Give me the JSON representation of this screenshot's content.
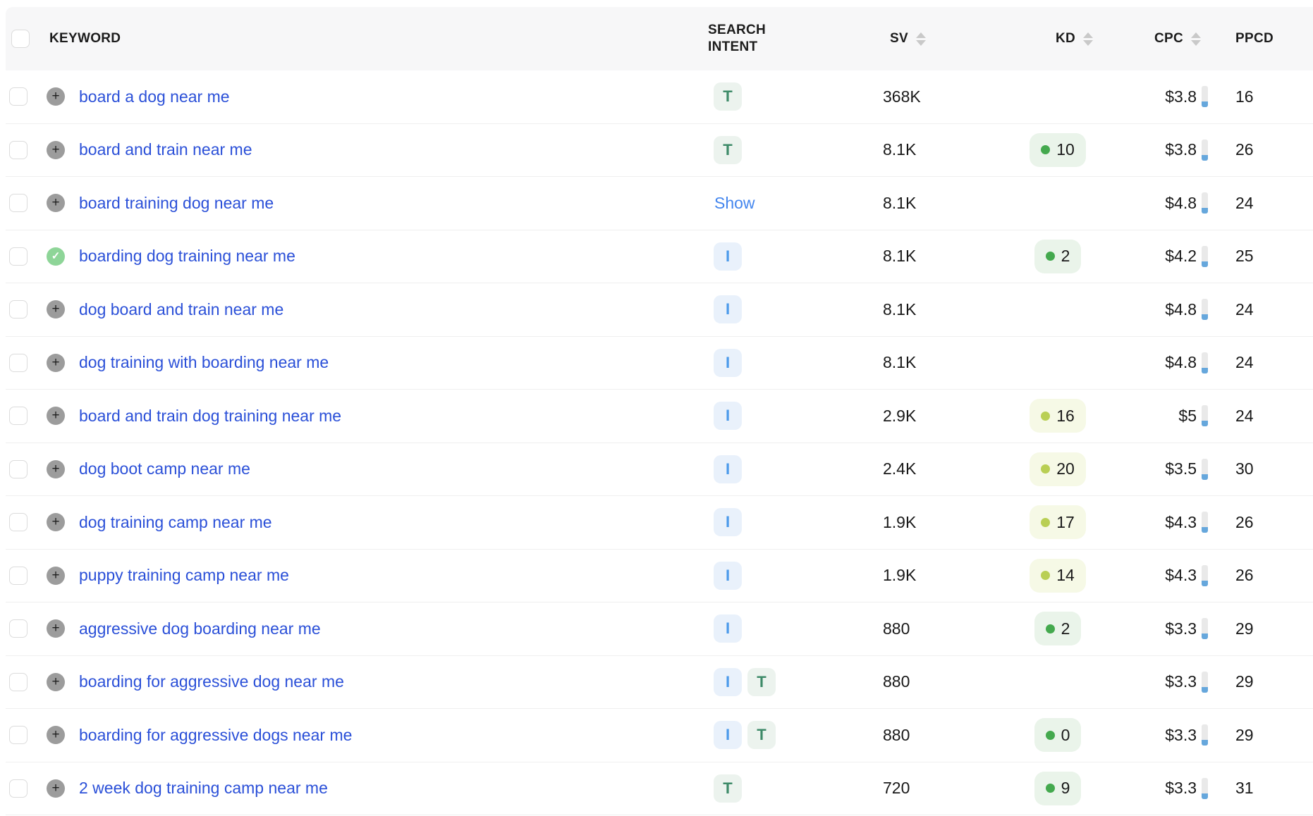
{
  "table": {
    "columns": {
      "keyword": "KEYWORD",
      "intent": "SEARCH INTENT",
      "sv": "SV",
      "kd": "KD",
      "cpc": "CPC",
      "ppcd": "PPCD"
    },
    "sortable_columns": [
      "SV",
      "KD",
      "CPC"
    ],
    "rows": [
      {
        "keyword": "board a dog near me",
        "added": false,
        "intents": [
          "T"
        ],
        "sv": "368K",
        "kd": null,
        "kd_level": null,
        "cpc": "$3.8",
        "ppcd": "16"
      },
      {
        "keyword": "board and train near me",
        "added": false,
        "intents": [
          "T"
        ],
        "sv": "8.1K",
        "kd": "10",
        "kd_level": "green",
        "cpc": "$3.8",
        "ppcd": "26"
      },
      {
        "keyword": "board training dog near me",
        "added": false,
        "intents": [],
        "show_label": "Show",
        "sv": "8.1K",
        "kd": null,
        "kd_level": null,
        "cpc": "$4.8",
        "ppcd": "24"
      },
      {
        "keyword": "boarding dog training near me",
        "added": true,
        "intents": [
          "I"
        ],
        "sv": "8.1K",
        "kd": "2",
        "kd_level": "green",
        "cpc": "$4.2",
        "ppcd": "25"
      },
      {
        "keyword": "dog board and train near me",
        "added": false,
        "intents": [
          "I"
        ],
        "sv": "8.1K",
        "kd": null,
        "kd_level": null,
        "cpc": "$4.8",
        "ppcd": "24"
      },
      {
        "keyword": "dog training with boarding near me",
        "added": false,
        "intents": [
          "I"
        ],
        "sv": "8.1K",
        "kd": null,
        "kd_level": null,
        "cpc": "$4.8",
        "ppcd": "24"
      },
      {
        "keyword": "board and train dog training near me",
        "added": false,
        "intents": [
          "I"
        ],
        "sv": "2.9K",
        "kd": "16",
        "kd_level": "yellow",
        "cpc": "$5",
        "ppcd": "24"
      },
      {
        "keyword": "dog boot camp near me",
        "added": false,
        "intents": [
          "I"
        ],
        "sv": "2.4K",
        "kd": "20",
        "kd_level": "yellow",
        "cpc": "$3.5",
        "ppcd": "30"
      },
      {
        "keyword": "dog training camp near me",
        "added": false,
        "intents": [
          "I"
        ],
        "sv": "1.9K",
        "kd": "17",
        "kd_level": "yellow",
        "cpc": "$4.3",
        "ppcd": "26"
      },
      {
        "keyword": "puppy training camp near me",
        "added": false,
        "intents": [
          "I"
        ],
        "sv": "1.9K",
        "kd": "14",
        "kd_level": "yellow",
        "cpc": "$4.3",
        "ppcd": "26"
      },
      {
        "keyword": "aggressive dog boarding near me",
        "added": false,
        "intents": [
          "I"
        ],
        "sv": "880",
        "kd": "2",
        "kd_level": "green",
        "cpc": "$3.3",
        "ppcd": "29"
      },
      {
        "keyword": "boarding for aggressive dog near me",
        "added": false,
        "intents": [
          "I",
          "T"
        ],
        "sv": "880",
        "kd": null,
        "kd_level": null,
        "cpc": "$3.3",
        "ppcd": "29"
      },
      {
        "keyword": "boarding for aggressive dogs near me",
        "added": false,
        "intents": [
          "I",
          "T"
        ],
        "sv": "880",
        "kd": "0",
        "kd_level": "green",
        "cpc": "$3.3",
        "ppcd": "29"
      },
      {
        "keyword": "2 week dog training camp near me",
        "added": false,
        "intents": [
          "T"
        ],
        "sv": "720",
        "kd": "9",
        "kd_level": "green",
        "cpc": "$3.3",
        "ppcd": "31"
      }
    ],
    "colors": {
      "keyword_link": "#2b50d8",
      "intent_transactional": "#3d8a68",
      "intent_informational": "#4a99ea",
      "show_link": "#4486ee",
      "kd_easy_dot": "#44a94e",
      "kd_medium_dot": "#b9cf54",
      "cpc_bar_fill": "#66a7dc",
      "header_background": "#f7f7f8"
    }
  }
}
